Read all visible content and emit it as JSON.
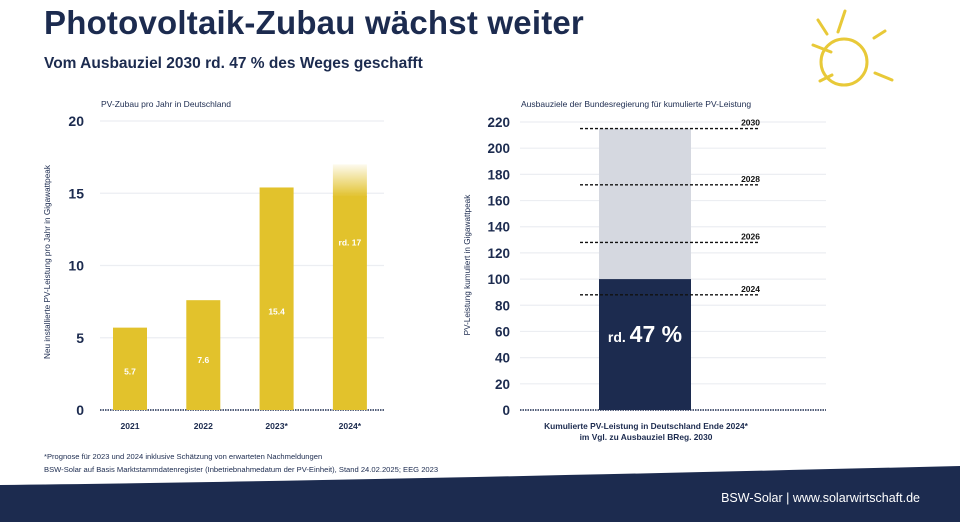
{
  "header": {
    "title": "Photovoltaik-Zubau wächst weiter",
    "subtitle": "Vom Ausbauziel 2030 rd. 47 % des Weges geschafft",
    "icon": "sun-icon"
  },
  "colors": {
    "navy": "#1c2b4f",
    "yellow": "#e2c22c",
    "light_gray_bar": "#d5d8e0",
    "gridline": "#eceef2"
  },
  "chart_data": [
    {
      "type": "bar",
      "title": "PV-Zubau pro Jahr in Deutschland",
      "xlabel": "",
      "ylabel": "Neu installierte PV-Leistung pro Jahr in Gigawattpeak",
      "ylim": [
        0,
        20
      ],
      "yticks": [
        0,
        5,
        10,
        15,
        20
      ],
      "grid": true,
      "categories": [
        "2021",
        "2022",
        "2023*",
        "2024*"
      ],
      "values": [
        5.7,
        7.6,
        15.4,
        17
      ],
      "data_labels": [
        "5.7",
        "7.6",
        "15.4",
        "rd. 17"
      ],
      "estimated_top_fade": [
        false,
        false,
        false,
        true
      ]
    },
    {
      "type": "bar",
      "title": "Ausbauziele der Bundesregierung für kumulierte PV-Leistung",
      "xlabel": "Kumulierte PV-Leistung in Deutschland Ende 2024* im Vgl. zu Ausbauziel BReg. 2030",
      "xlabel_lines": [
        "Kumulierte PV-Leistung in Deutschland Ende 2024*",
        "im Vgl. zu Ausbauziel BReg. 2030"
      ],
      "ylabel": "PV-Leistung kumuliert in Gigawattpeak",
      "ylim": [
        0,
        220
      ],
      "yticks": [
        0,
        20,
        40,
        60,
        80,
        100,
        120,
        140,
        160,
        180,
        200,
        220
      ],
      "grid": true,
      "stacked": true,
      "series": [
        {
          "name": "Kumulierte PV-Leistung Ende 2024",
          "value": 100,
          "color": "#1c2b4f"
        },
        {
          "name": "Ausbauziel 2030",
          "value": 215,
          "color": "#d5d8e0"
        }
      ],
      "bar_label_prefix": "rd.",
      "bar_label_value": "47 %",
      "targets": [
        {
          "label": "2030",
          "value": 215
        },
        {
          "label": "2028",
          "value": 172
        },
        {
          "label": "2026",
          "value": 128
        },
        {
          "label": "2024",
          "value": 88
        }
      ]
    }
  ],
  "footnotes": {
    "line1": "*Prognose für 2023 und 2024 inklusive Schätzung von erwarteten Nachmeldungen",
    "line2": "BSW-Solar auf Basis Marktstammdatenregister (Inbetriebnahmedatum der PV-Einheit), Stand 24.02.2025; EEG 2023"
  },
  "footer": {
    "brand": "BSW-Solar | www.solarwirtschaft.de"
  }
}
